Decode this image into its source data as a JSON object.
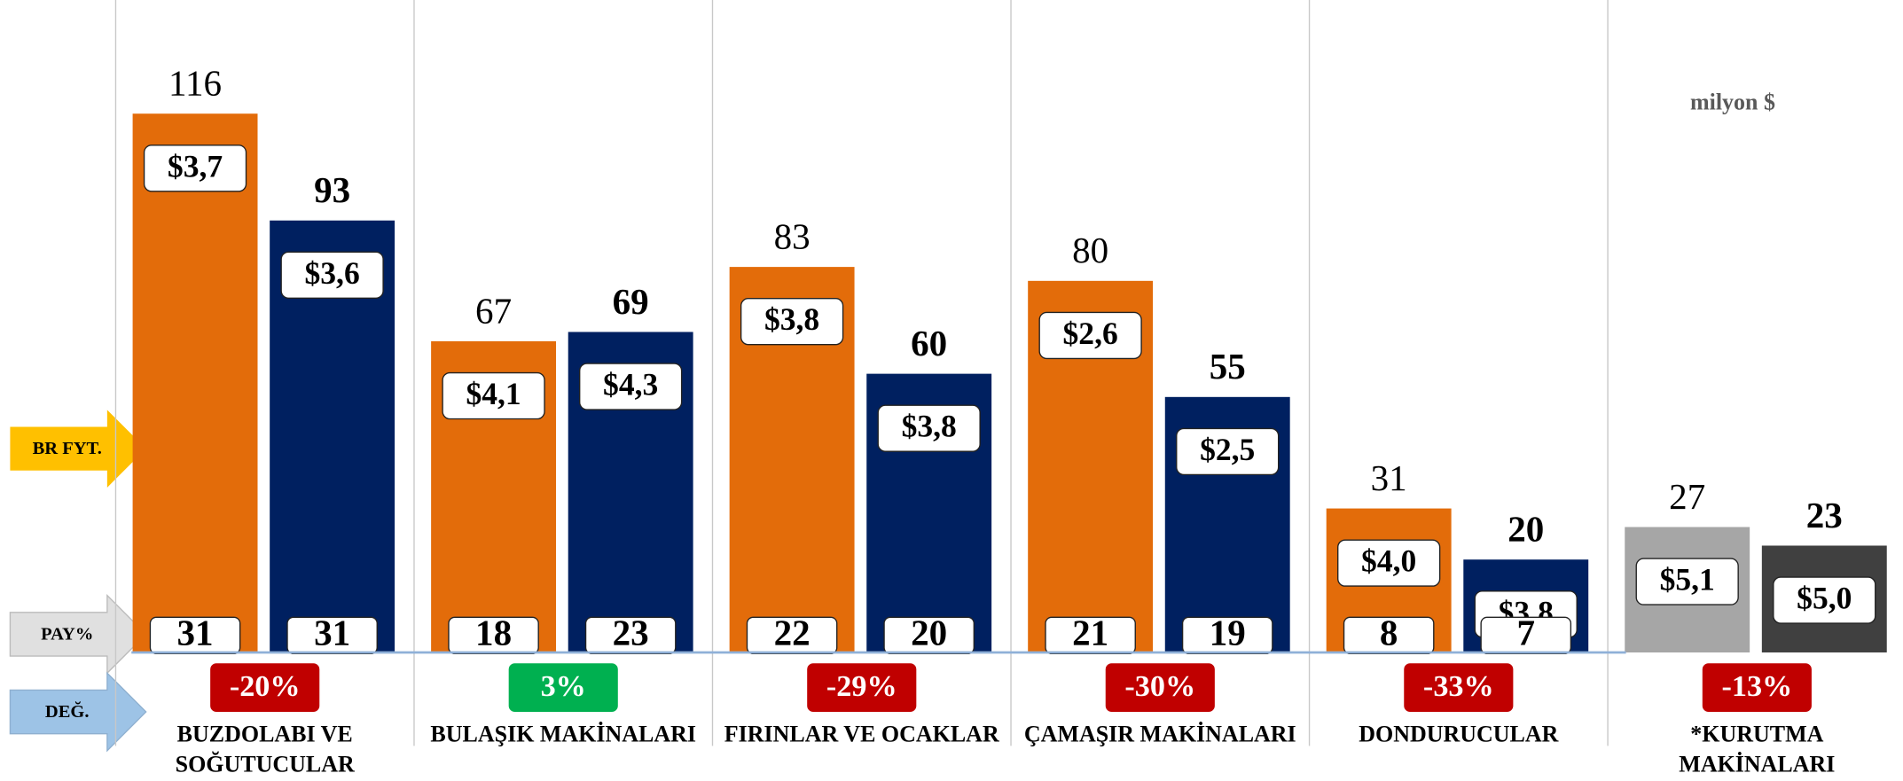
{
  "chart_data": {
    "type": "bar",
    "unit_note": "milyon $",
    "side_labels": {
      "price": "BR FYT.",
      "share": "PAY%",
      "change": "DEĞ."
    },
    "categories": [
      [
        "BUZDOLABI VE",
        "SOĞUTUCULAR"
      ],
      [
        "BULAŞIK MAKİNALARI"
      ],
      [
        "FIRINLAR VE OCAKLAR"
      ],
      [
        "ÇAMAŞIR MAKİNALARI"
      ],
      [
        "DONDURUCULAR"
      ],
      [
        "*KURUTMA",
        "MAKİNALARI"
      ]
    ],
    "series": [
      {
        "colors": [
          "#e36c0a",
          "#e36c0a",
          "#e36c0a",
          "#e36c0a",
          "#e36c0a",
          "#a6a6a6"
        ],
        "values": [
          116,
          67,
          83,
          80,
          31,
          27
        ],
        "prices": [
          3.7,
          4.1,
          3.8,
          2.6,
          4.0,
          5.1
        ],
        "price_labels": [
          "$3,7",
          "$4,1",
          "$3,8",
          "$2,6",
          "$4,0",
          "$5,1"
        ],
        "shares": [
          31,
          18,
          22,
          21,
          8,
          null
        ]
      },
      {
        "colors": [
          "#002060",
          "#002060",
          "#002060",
          "#002060",
          "#002060",
          "#404040"
        ],
        "values": [
          93,
          69,
          60,
          55,
          20,
          23
        ],
        "prices": [
          3.6,
          4.3,
          3.8,
          2.5,
          3.8,
          5.0
        ],
        "price_labels": [
          "$3,6",
          "$4,3",
          "$3,8",
          "$2,5",
          "$3,8",
          "$5,0"
        ],
        "shares": [
          31,
          23,
          20,
          19,
          7,
          null
        ]
      }
    ],
    "changes": [
      -20,
      3,
      -29,
      -30,
      -33,
      -13
    ],
    "change_labels": [
      "-20%",
      "3%",
      "-29%",
      "-30%",
      "-33%",
      "-13%"
    ],
    "change_colors": [
      "#c00000",
      "#00b050",
      "#c00000",
      "#c00000",
      "#c00000",
      "#c00000"
    ]
  }
}
